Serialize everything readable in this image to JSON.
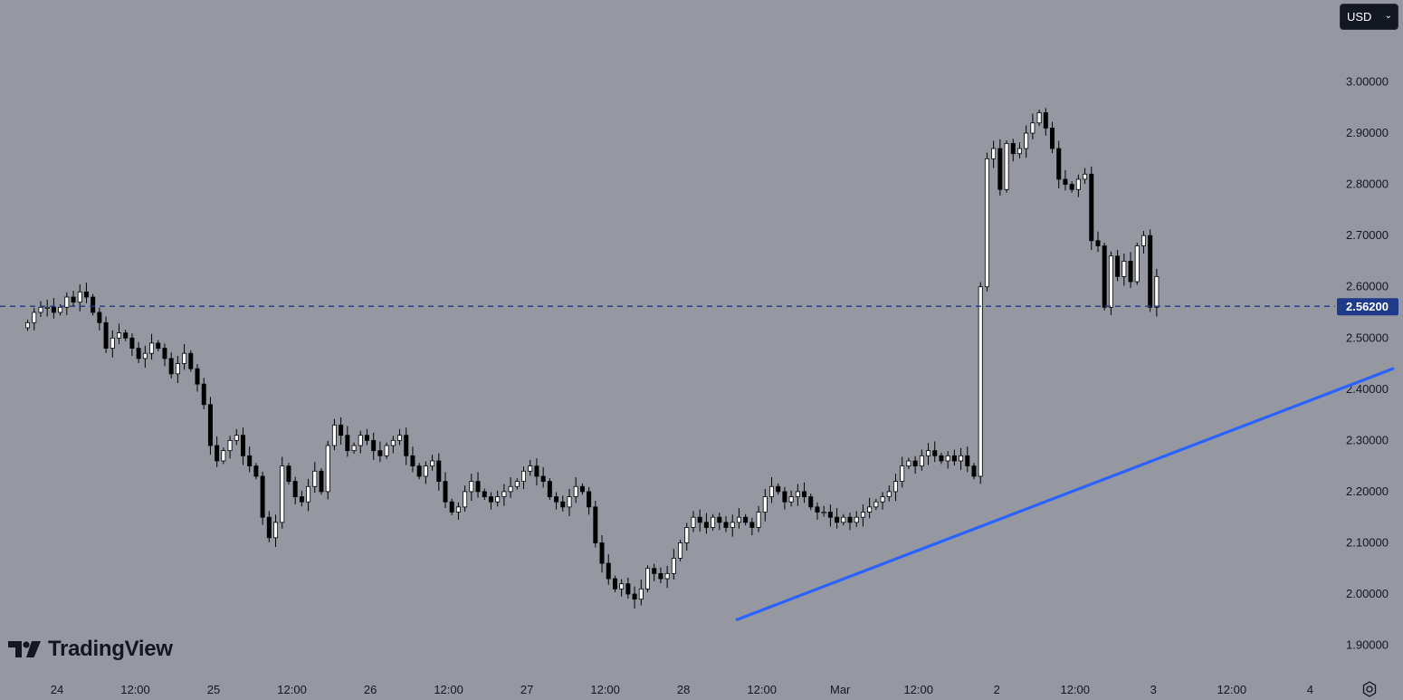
{
  "currency_selector": {
    "label": "USD",
    "chevron": "chevron-down-icon"
  },
  "branding": {
    "logo_text": "TradingView",
    "logo_icon": "tradingview-logo-icon"
  },
  "settings": {
    "icon": "gear-icon"
  },
  "colors": {
    "background": "#9598a1",
    "candle_up_body": "#ffffff",
    "candle_down_body": "#000000",
    "wick": "#000000",
    "trendline": "#2962ff",
    "price_line": "#1e3a8a",
    "price_label_bg": "#1e3a8a",
    "axis_text": "#131722"
  },
  "chart_data": {
    "type": "candlestick",
    "symbol_currency": "USD",
    "ylim": [
      1.85,
      3.06
    ],
    "y_ticks": [
      "1.90000",
      "2.00000",
      "2.10000",
      "2.20000",
      "2.30000",
      "2.40000",
      "2.50000",
      "2.60000",
      "2.70000",
      "2.80000",
      "2.90000",
      "3.00000"
    ],
    "x_ticks": [
      "24",
      "12:00",
      "25",
      "12:00",
      "26",
      "12:00",
      "27",
      "12:00",
      "28",
      "12:00",
      "Mar",
      "12:00",
      "2",
      "12:00",
      "3",
      "12:00",
      "4"
    ],
    "x_tick_hours": [
      0,
      12,
      24,
      36,
      48,
      60,
      72,
      84,
      96,
      108,
      120,
      132,
      144,
      156,
      168,
      180,
      192
    ],
    "x_hour_range": [
      -4.4,
      205.5
    ],
    "current_price": {
      "value": 2.562,
      "label": "2.56200"
    },
    "trendline": {
      "start": {
        "hour": 104.2,
        "price": 1.95
      },
      "end": {
        "hour": 204.7,
        "price": 2.44
      }
    },
    "candle_interval_hours": 1,
    "candles_start_hour": -4.5,
    "closes": [
      2.53,
      2.55,
      2.56,
      2.56,
      2.55,
      2.56,
      2.58,
      2.57,
      2.59,
      2.58,
      2.55,
      2.53,
      2.48,
      2.5,
      2.51,
      2.5,
      2.48,
      2.46,
      2.47,
      2.49,
      2.48,
      2.46,
      2.43,
      2.45,
      2.47,
      2.44,
      2.41,
      2.37,
      2.29,
      2.26,
      2.28,
      2.3,
      2.31,
      2.27,
      2.25,
      2.23,
      2.15,
      2.11,
      2.14,
      2.25,
      2.22,
      2.19,
      2.18,
      2.21,
      2.24,
      2.2,
      2.29,
      2.33,
      2.31,
      2.28,
      2.29,
      2.31,
      2.3,
      2.28,
      2.27,
      2.29,
      2.3,
      2.31,
      2.27,
      2.25,
      2.23,
      2.25,
      2.26,
      2.22,
      2.18,
      2.16,
      2.17,
      2.2,
      2.22,
      2.2,
      2.19,
      2.18,
      2.19,
      2.2,
      2.21,
      2.22,
      2.24,
      2.25,
      2.23,
      2.22,
      2.19,
      2.18,
      2.17,
      2.19,
      2.21,
      2.2,
      2.17,
      2.1,
      2.06,
      2.03,
      2.01,
      2.02,
      2.0,
      1.99,
      2.01,
      2.05,
      2.04,
      2.03,
      2.04,
      2.07,
      2.1,
      2.13,
      2.15,
      2.14,
      2.13,
      2.15,
      2.14,
      2.13,
      2.14,
      2.15,
      2.14,
      2.13,
      2.16,
      2.19,
      2.21,
      2.2,
      2.18,
      2.19,
      2.2,
      2.19,
      2.17,
      2.16,
      2.16,
      2.15,
      2.14,
      2.15,
      2.14,
      2.15,
      2.16,
      2.17,
      2.18,
      2.19,
      2.2,
      2.22,
      2.25,
      2.26,
      2.25,
      2.27,
      2.28,
      2.27,
      2.26,
      2.27,
      2.26,
      2.27,
      2.25,
      2.23,
      2.6,
      2.85,
      2.87,
      2.79,
      2.88,
      2.86,
      2.87,
      2.9,
      2.92,
      2.94,
      2.91,
      2.87,
      2.81,
      2.8,
      2.79,
      2.81,
      2.82,
      2.69,
      2.68,
      2.56,
      2.66,
      2.62,
      2.65,
      2.61,
      2.68,
      2.7,
      2.56,
      2.62
    ]
  }
}
